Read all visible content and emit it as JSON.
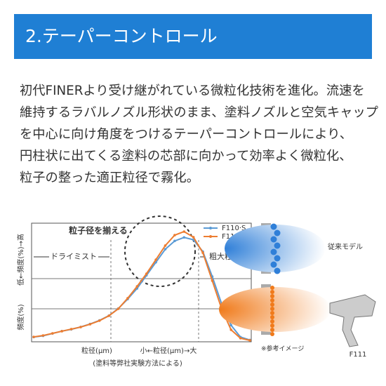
{
  "header": {
    "title": "2.テーパーコントロール"
  },
  "body": {
    "lines": [
      "初代FINERより受け継がれている微粒化技術を進化。流速を",
      "維持するラバルノズル形状のまま、塗料ノズルと空気キャップ",
      "を中心に向け角度をつけるテーパーコントロールにより、",
      "円柱状に出てくる塗料の芯部に向かって効率よく微粒化、",
      "粒子の整った適正粒径で霧化。"
    ]
  },
  "chart_data": {
    "type": "line",
    "y_label_top": "低←頻度(%)→高",
    "y_label_bottom": "頻度(%)",
    "x_label_left": "粒径(μm)",
    "x_label_center": "小←粒径(μm)→大",
    "note": "(塗料等弊社実験方法による)",
    "annotations": {
      "circle": "粒子径を揃える",
      "left": "ドライミスト",
      "right": "粗大粒子"
    },
    "ylim": [
      0,
      100
    ],
    "series": [
      {
        "name": "F110·S",
        "color": "#5b9bd5",
        "values": [
          4,
          5,
          7,
          9,
          10.5,
          12.5,
          15,
          18,
          22,
          28,
          36,
          45,
          56,
          67,
          78,
          85,
          88,
          86,
          76,
          55,
          32,
          14,
          4,
          1.5
        ]
      },
      {
        "name": "F111·S",
        "color": "#ed7d31",
        "values": [
          4.1,
          5.3,
          7.1,
          8.9,
          10.7,
          12.4,
          14.8,
          17.8,
          21.9,
          27.8,
          36.7,
          46.7,
          57.4,
          69.2,
          81.1,
          89.9,
          92.9,
          88.2,
          75.1,
          51.5,
          27.8,
          10.1,
          3,
          1.2
        ]
      }
    ]
  },
  "illustration": {
    "conventional": "従来モデル",
    "reference": "※参考イメージ",
    "model": "F111"
  }
}
